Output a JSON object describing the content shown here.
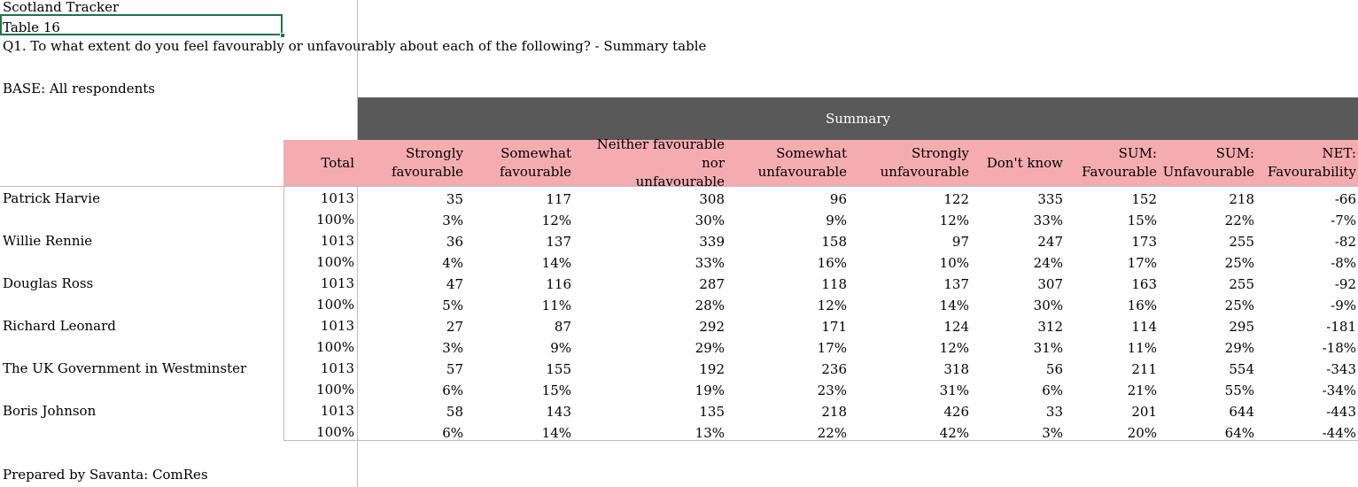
{
  "meta": {
    "title": "Scotland Tracker",
    "table_name": "Table 16",
    "question": "Q1. To what extent do you feel favourably or unfavourably about each of the following? - Summary table",
    "base": "BASE: All respondents",
    "footer": "Prepared by Savanta: ComRes"
  },
  "summary_label": "Summary",
  "columns": [
    {
      "line1": "Total",
      "line2": ""
    },
    {
      "line1": "Strongly",
      "line2": "favourable"
    },
    {
      "line1": "Somewhat",
      "line2": "favourable"
    },
    {
      "line1": "Neither favourable nor",
      "line2": "unfavourable"
    },
    {
      "line1": "Somewhat",
      "line2": "unfavourable"
    },
    {
      "line1": "Strongly",
      "line2": "unfavourable"
    },
    {
      "line1": "Don't know",
      "line2": ""
    },
    {
      "line1": "SUM:",
      "line2": "Favourable"
    },
    {
      "line1": "SUM:",
      "line2": "Unfavourable"
    },
    {
      "line1": "NET:",
      "line2": "Favourability"
    }
  ],
  "rows": [
    {
      "label": "Patrick Harvie",
      "counts": [
        "1013",
        "35",
        "117",
        "308",
        "96",
        "122",
        "335",
        "152",
        "218",
        "-66"
      ],
      "pcts": [
        "100%",
        "3%",
        "12%",
        "30%",
        "9%",
        "12%",
        "33%",
        "15%",
        "22%",
        "-7%"
      ]
    },
    {
      "label": "Willie Rennie",
      "counts": [
        "1013",
        "36",
        "137",
        "339",
        "158",
        "97",
        "247",
        "173",
        "255",
        "-82"
      ],
      "pcts": [
        "100%",
        "4%",
        "14%",
        "33%",
        "16%",
        "10%",
        "24%",
        "17%",
        "25%",
        "-8%"
      ]
    },
    {
      "label": "Douglas Ross",
      "counts": [
        "1013",
        "47",
        "116",
        "287",
        "118",
        "137",
        "307",
        "163",
        "255",
        "-92"
      ],
      "pcts": [
        "100%",
        "5%",
        "11%",
        "28%",
        "12%",
        "14%",
        "30%",
        "16%",
        "25%",
        "-9%"
      ]
    },
    {
      "label": "Richard Leonard",
      "counts": [
        "1013",
        "27",
        "87",
        "292",
        "171",
        "124",
        "312",
        "114",
        "295",
        "-181"
      ],
      "pcts": [
        "100%",
        "3%",
        "9%",
        "29%",
        "17%",
        "12%",
        "31%",
        "11%",
        "29%",
        "-18%"
      ]
    },
    {
      "label": "The UK Government in Westminster",
      "counts": [
        "1013",
        "57",
        "155",
        "192",
        "236",
        "318",
        "56",
        "211",
        "554",
        "-343"
      ],
      "pcts": [
        "100%",
        "6%",
        "15%",
        "19%",
        "23%",
        "31%",
        "6%",
        "21%",
        "55%",
        "-34%"
      ]
    },
    {
      "label": "Boris Johnson",
      "counts": [
        "1013",
        "58",
        "143",
        "135",
        "218",
        "426",
        "33",
        "201",
        "644",
        "-443"
      ],
      "pcts": [
        "100%",
        "6%",
        "14%",
        "13%",
        "22%",
        "42%",
        "3%",
        "20%",
        "64%",
        "-44%"
      ]
    }
  ]
}
